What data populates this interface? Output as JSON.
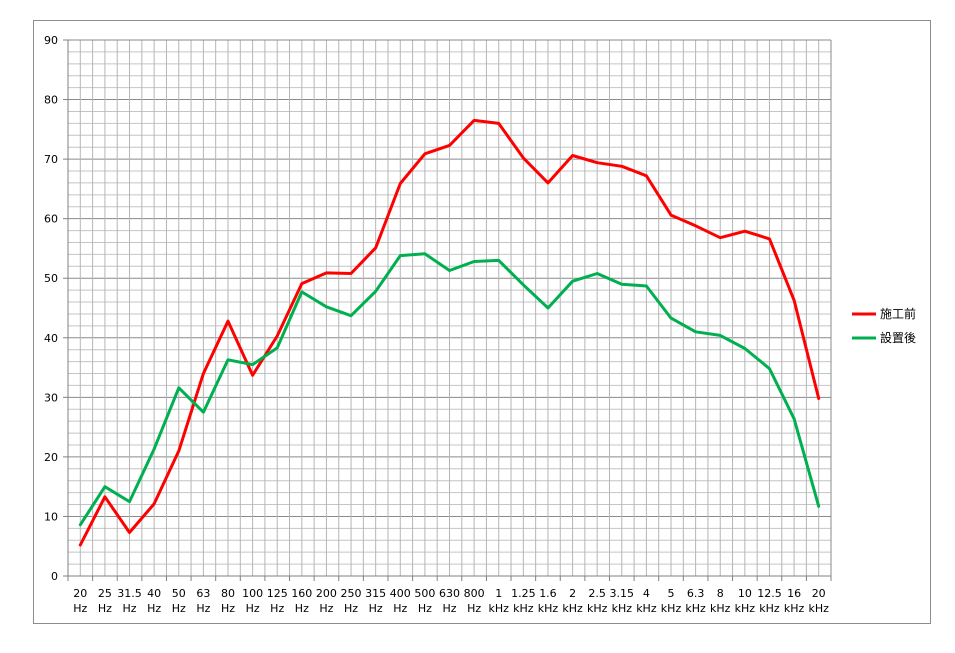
{
  "chart_data": {
    "type": "line",
    "title": "",
    "xlabel": "",
    "ylabel": "",
    "ylim": [
      0,
      90
    ],
    "yticks": [
      0,
      10,
      20,
      30,
      40,
      50,
      60,
      70,
      80,
      90
    ],
    "grid": true,
    "legend_position": "right",
    "categories": [
      {
        "top": "20",
        "bottom": "Hz"
      },
      {
        "top": "25",
        "bottom": "Hz"
      },
      {
        "top": "31.5",
        "bottom": "Hz"
      },
      {
        "top": "40",
        "bottom": "Hz"
      },
      {
        "top": "50",
        "bottom": "Hz"
      },
      {
        "top": "63",
        "bottom": "Hz"
      },
      {
        "top": "80",
        "bottom": "Hz"
      },
      {
        "top": "100",
        "bottom": "Hz"
      },
      {
        "top": "125",
        "bottom": "Hz"
      },
      {
        "top": "160",
        "bottom": "Hz"
      },
      {
        "top": "200",
        "bottom": "Hz"
      },
      {
        "top": "250",
        "bottom": "Hz"
      },
      {
        "top": "315",
        "bottom": "Hz"
      },
      {
        "top": "400",
        "bottom": "Hz"
      },
      {
        "top": "500",
        "bottom": "Hz"
      },
      {
        "top": "630",
        "bottom": "Hz"
      },
      {
        "top": "800",
        "bottom": "Hz"
      },
      {
        "top": "1",
        "bottom": "kHz"
      },
      {
        "top": "1.25",
        "bottom": "kHz"
      },
      {
        "top": "1.6",
        "bottom": "kHz"
      },
      {
        "top": "2",
        "bottom": "kHz"
      },
      {
        "top": "2.5",
        "bottom": "kHz"
      },
      {
        "top": "3.15",
        "bottom": "kHz"
      },
      {
        "top": "4",
        "bottom": "kHz"
      },
      {
        "top": "5",
        "bottom": "kHz"
      },
      {
        "top": "6.3",
        "bottom": "kHz"
      },
      {
        "top": "8",
        "bottom": "kHz"
      },
      {
        "top": "10",
        "bottom": "kHz"
      },
      {
        "top": "12.5",
        "bottom": "kHz"
      },
      {
        "top": "16",
        "bottom": "kHz"
      },
      {
        "top": "20",
        "bottom": "kHz"
      }
    ],
    "series": [
      {
        "name": "施工前",
        "color": "#ff0000",
        "values": [
          5.2,
          13.3,
          7.3,
          12.1,
          21.0,
          34.0,
          42.8,
          33.7,
          40.3,
          49.1,
          50.9,
          50.8,
          55.1,
          65.9,
          70.9,
          72.3,
          76.5,
          76.0,
          70.2,
          66.0,
          70.6,
          69.4,
          68.8,
          67.2,
          60.6,
          58.8,
          56.8,
          57.9,
          56.6,
          46.3,
          29.8
        ]
      },
      {
        "name": "設置後",
        "color": "#00b050",
        "values": [
          8.6,
          15.0,
          12.5,
          21.3,
          31.6,
          27.5,
          36.3,
          35.5,
          38.3,
          47.7,
          45.2,
          43.7,
          47.8,
          53.8,
          54.1,
          51.3,
          52.8,
          53.0,
          48.9,
          45.0,
          49.5,
          50.8,
          49.0,
          48.7,
          43.3,
          41.0,
          40.4,
          38.2,
          34.8,
          26.4,
          11.7
        ]
      }
    ]
  }
}
